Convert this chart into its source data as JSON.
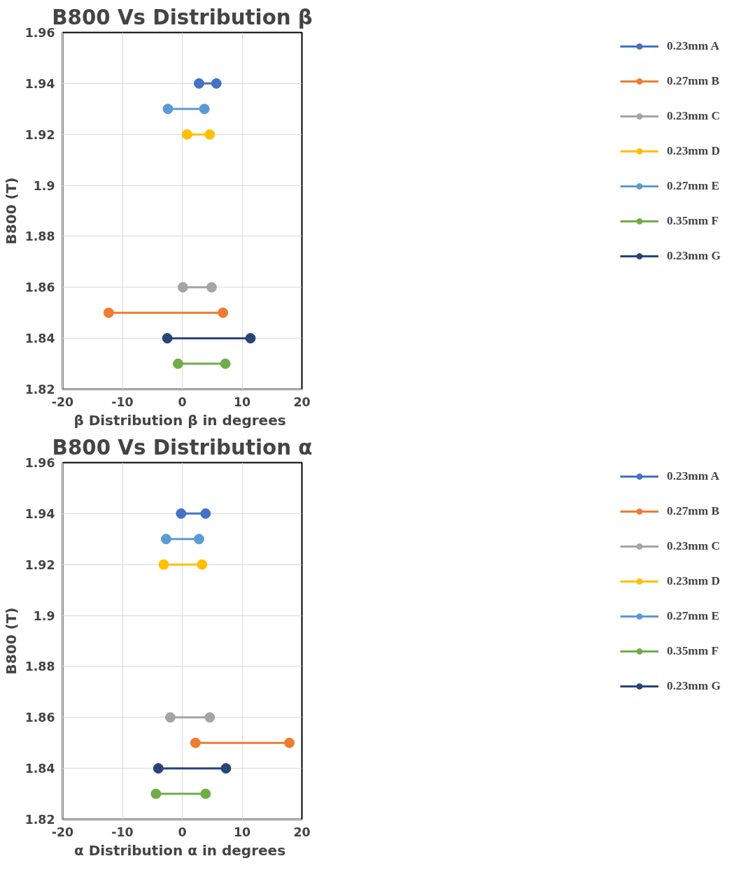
{
  "chart_data": [
    {
      "type": "line",
      "title": "B800 Vs Distribution β",
      "xlabel": "β Distribution  β in degrees",
      "ylabel": "B800 (T)",
      "xlim": [
        -20,
        20
      ],
      "xticks": [
        -20,
        -10,
        0,
        10,
        20
      ],
      "ylim": [
        1.82,
        1.96
      ],
      "yticks": [
        1.82,
        1.84,
        1.86,
        1.88,
        1.9,
        1.92,
        1.94,
        1.96
      ],
      "grid": true,
      "legend": "right",
      "marker": "circle",
      "line_style": "solid",
      "series": [
        {
          "name": "0.23mm A",
          "color": "#4472c4",
          "x": [
            2.8,
            5.7
          ],
          "values": [
            1.94,
            1.94
          ]
        },
        {
          "name": "0.27mm B",
          "color": "#ed7d31",
          "x": [
            -12.3,
            6.8
          ],
          "values": [
            1.85,
            1.85
          ]
        },
        {
          "name": "0.23mm C",
          "color": "#a5a5a5",
          "x": [
            0.1,
            4.9
          ],
          "values": [
            1.86,
            1.86
          ]
        },
        {
          "name": "0.23mm D",
          "color": "#ffc000",
          "x": [
            0.8,
            4.6
          ],
          "values": [
            1.92,
            1.92
          ]
        },
        {
          "name": "0.27mm E",
          "color": "#5b9bd5",
          "x": [
            -2.4,
            3.7
          ],
          "values": [
            1.93,
            1.93
          ]
        },
        {
          "name": "0.35mm F",
          "color": "#70ad47",
          "x": [
            -0.7,
            7.2
          ],
          "values": [
            1.83,
            1.83
          ]
        },
        {
          "name": "0.23mm G",
          "color": "#264478",
          "x": [
            -2.5,
            11.4
          ],
          "values": [
            1.84,
            1.84
          ]
        }
      ]
    },
    {
      "type": "line",
      "title": "B800 Vs Distribution α",
      "xlabel": "α Distribution  α in degrees",
      "ylabel": "B800 (T)",
      "xlim": [
        -20,
        20
      ],
      "xticks": [
        -20,
        -10,
        0,
        10,
        20
      ],
      "ylim": [
        1.82,
        1.96
      ],
      "yticks": [
        1.82,
        1.84,
        1.86,
        1.88,
        1.9,
        1.92,
        1.94,
        1.96
      ],
      "grid": true,
      "legend": "right",
      "marker": "circle",
      "line_style": "solid",
      "series": [
        {
          "name": "0.23mm A",
          "color": "#4472c4",
          "x": [
            -0.2,
            3.9
          ],
          "values": [
            1.94,
            1.94
          ]
        },
        {
          "name": "0.27mm B",
          "color": "#ed7d31",
          "x": [
            2.2,
            17.9
          ],
          "values": [
            1.85,
            1.85
          ]
        },
        {
          "name": "0.23mm C",
          "color": "#a5a5a5",
          "x": [
            -2.0,
            4.6
          ],
          "values": [
            1.86,
            1.86
          ]
        },
        {
          "name": "0.23mm D",
          "color": "#ffc000",
          "x": [
            -3.1,
            3.3
          ],
          "values": [
            1.92,
            1.92
          ]
        },
        {
          "name": "0.27mm E",
          "color": "#5b9bd5",
          "x": [
            -2.7,
            2.8
          ],
          "values": [
            1.93,
            1.93
          ]
        },
        {
          "name": "0.35mm F",
          "color": "#70ad47",
          "x": [
            -4.4,
            3.9
          ],
          "values": [
            1.83,
            1.83
          ]
        },
        {
          "name": "0.23mm G",
          "color": "#264478",
          "x": [
            -4.0,
            7.3
          ],
          "values": [
            1.84,
            1.84
          ]
        }
      ]
    }
  ]
}
